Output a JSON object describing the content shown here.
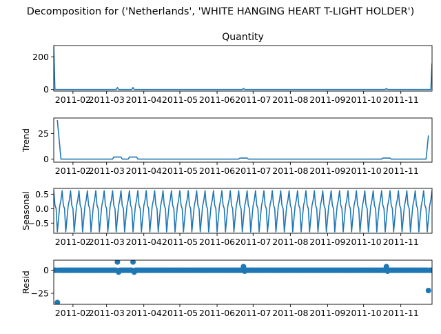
{
  "figure_title": "Decomposition for ('Netherlands', 'WHITE HANGING HEART T-LIGHT HOLDER')",
  "colors": {
    "line": "#1f77b4",
    "axis": "#000000",
    "background": "#ffffff"
  },
  "x_tick_labels": [
    "2011-02",
    "2011-03",
    "2011-04",
    "2011-05",
    "2011-06",
    "2011-07",
    "2011-08",
    "2011-09",
    "2011-10",
    "2011-11"
  ],
  "chart_data": [
    {
      "type": "line",
      "title": "Quantity",
      "ylabel": "",
      "xlim": [
        "2011-01-16",
        "2011-11-27"
      ],
      "ylim": [
        -10,
        270
      ],
      "yticks": [
        0,
        200
      ],
      "ytick_labels": [
        "0",
        "200"
      ],
      "grid": false,
      "x": [
        "2011-01-16",
        "2011-01-17",
        "2011-03-09",
        "2011-03-10",
        "2011-03-11",
        "2011-03-22",
        "2011-03-23",
        "2011-03-24",
        "2011-06-22",
        "2011-06-23",
        "2011-06-24",
        "2011-10-19",
        "2011-10-20",
        "2011-10-21",
        "2011-11-26",
        "2011-11-27"
      ],
      "y": [
        270,
        0,
        0,
        12,
        0,
        0,
        12,
        0,
        0,
        6,
        0,
        0,
        6,
        0,
        0,
        160
      ]
    },
    {
      "type": "line",
      "title": "",
      "ylabel": "Trend",
      "xlim": [
        "2011-01-16",
        "2011-11-27"
      ],
      "ylim": [
        -3,
        40
      ],
      "yticks": [
        0,
        25
      ],
      "ytick_labels": [
        "0",
        "25"
      ],
      "grid": false,
      "x": [
        "2011-01-19",
        "2011-01-22",
        "2011-03-06",
        "2011-03-07",
        "2011-03-13",
        "2011-03-14",
        "2011-03-19",
        "2011-03-20",
        "2011-03-26",
        "2011-03-27",
        "2011-06-19",
        "2011-06-20",
        "2011-06-26",
        "2011-06-27",
        "2011-10-16",
        "2011-10-17",
        "2011-10-23",
        "2011-10-24",
        "2011-11-22",
        "2011-11-24"
      ],
      "y": [
        38,
        0,
        0,
        2,
        2,
        0,
        0,
        2,
        2,
        0,
        0,
        1,
        1,
        0,
        0,
        1,
        1,
        0,
        0,
        23
      ]
    },
    {
      "type": "line",
      "title": "",
      "ylabel": "Seasonal",
      "xlim": [
        "2011-01-16",
        "2011-11-27"
      ],
      "ylim": [
        -0.85,
        0.7
      ],
      "yticks": [
        0.5,
        0.0,
        -0.5
      ],
      "ytick_labels": [
        "0.5",
        "0.0",
        "−0.5"
      ],
      "grid": false,
      "period_days": 7,
      "start": "2011-01-16",
      "end": "2011-11-27",
      "pattern": [
        0.62,
        0.12,
        0.0,
        -0.8,
        -0.35,
        0.1,
        0.3
      ]
    },
    {
      "type": "scatter",
      "title": "",
      "ylabel": "Resid",
      "xlim": [
        "2011-01-16",
        "2011-11-27"
      ],
      "ylim": [
        -37,
        11
      ],
      "yticks": [
        0,
        -25
      ],
      "ytick_labels": [
        "0",
        "−25"
      ],
      "grid": false,
      "baseline": true,
      "start": "2011-01-16",
      "end": "2011-11-27",
      "default_value": 0,
      "overrides": [
        {
          "x": "2011-01-19",
          "y": -35
        },
        {
          "x": "2011-03-10",
          "y": 9
        },
        {
          "x": "2011-03-11",
          "y": -2
        },
        {
          "x": "2011-03-23",
          "y": 9
        },
        {
          "x": "2011-03-24",
          "y": -2
        },
        {
          "x": "2011-06-23",
          "y": 4
        },
        {
          "x": "2011-06-24",
          "y": -1
        },
        {
          "x": "2011-10-20",
          "y": 4
        },
        {
          "x": "2011-10-21",
          "y": -1
        },
        {
          "x": "2011-11-24",
          "y": -22
        }
      ]
    }
  ]
}
